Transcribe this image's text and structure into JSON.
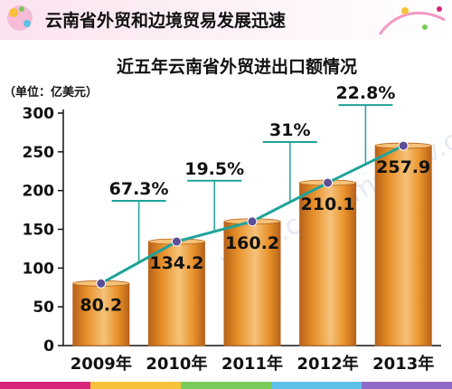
{
  "header": {
    "title": "云南省外贸和边境贸易发展迅速"
  },
  "watermark": {
    "text": "www.customs.gov.cn"
  },
  "colors": {
    "bar": "#E8912A",
    "bar_dark": "#B8621A",
    "bar_light": "#F6C27A",
    "line": "#1FA39A",
    "marker": "#5B4E96",
    "header_band": "#FBE3EF",
    "header_accent": "#D8247A"
  },
  "chart_data": {
    "type": "bar",
    "title": "近五年云南省外贸进出口额情况",
    "ylabel": "（单位：亿美元）",
    "xlabel": "",
    "ylim": [
      0,
      300
    ],
    "yticks": [
      0,
      50,
      100,
      150,
      200,
      250,
      300
    ],
    "categories": [
      "2009年",
      "2010年",
      "2011年",
      "2012年",
      "2013年"
    ],
    "values": [
      80.2,
      134.2,
      160.2,
      210.1,
      257.9
    ],
    "value_labels": [
      "80.2",
      "134.2",
      "160.2",
      "210.1",
      "257.9"
    ],
    "growth_labels": [
      "67.3%",
      "19.5%",
      "31%",
      "22.8%"
    ],
    "overlay_line": true,
    "grid": false
  }
}
